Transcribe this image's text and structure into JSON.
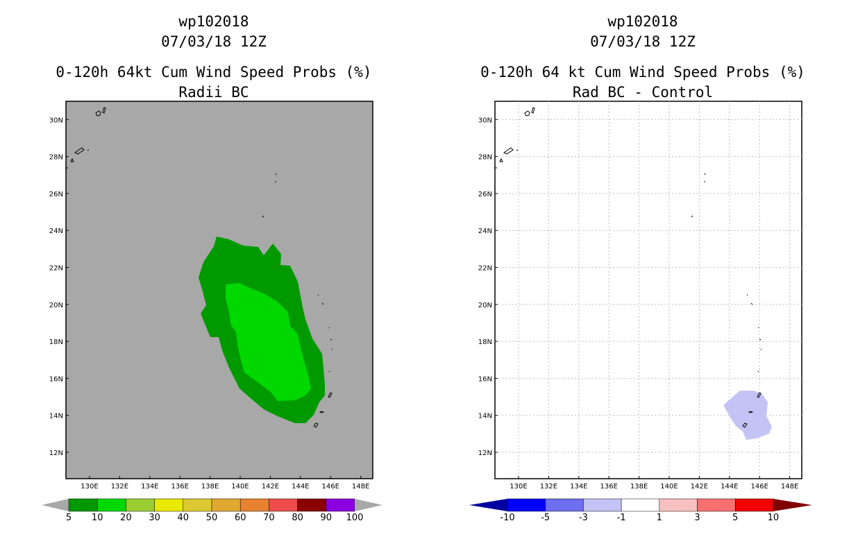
{
  "left_panel": {
    "storm_id": "wp102018",
    "datetime": "07/03/18 12Z",
    "title": "0-120h 64kt Cum Wind Speed Probs (%)",
    "subtitle": "Radii BC",
    "background_color": "#a8a8a8",
    "contour_colors": {
      "5-10": "#009900",
      "10-20": "#00d800"
    },
    "colorbar": {
      "labels": [
        "5",
        "10",
        "20",
        "30",
        "40",
        "50",
        "60",
        "70",
        "80",
        "90",
        "100"
      ],
      "colors": [
        "#009900",
        "#00d800",
        "#9acd32",
        "#e8e800",
        "#dcc832",
        "#e0a830",
        "#e88230",
        "#ee4c4c",
        "#8b0000",
        "#8a00e0"
      ],
      "end_color": "#a8a8a8"
    }
  },
  "right_panel": {
    "storm_id": "wp102018",
    "datetime": "07/03/18 12Z",
    "title": "0-120h 64 kt Cum Wind Speed Probs (%)",
    "subtitle": "Rad BC - Control",
    "background_color": "#ffffff",
    "contour_colors": {
      "-3 to -1": "#c3c3f5"
    },
    "colorbar": {
      "labels": [
        "-10",
        "-5",
        "-3",
        "-1",
        "1",
        "3",
        "5",
        "10"
      ],
      "colors": [
        "#0000d0",
        "#0000ff",
        "#6e6ef0",
        "#c3c3f5",
        "#ffffff",
        "#f8c0c0",
        "#f87070",
        "#f00000",
        "#8b0000"
      ],
      "low_end_color": "#0000a0",
      "high_end_color": "#800000"
    }
  },
  "axes": {
    "lon_labels": [
      "130E",
      "132E",
      "134E",
      "136E",
      "138E",
      "140E",
      "142E",
      "144E",
      "146E",
      "148E"
    ],
    "lat_labels": [
      "12N",
      "14N",
      "16N",
      "18N",
      "20N",
      "22N",
      "24N",
      "26N",
      "28N",
      "30N"
    ]
  }
}
